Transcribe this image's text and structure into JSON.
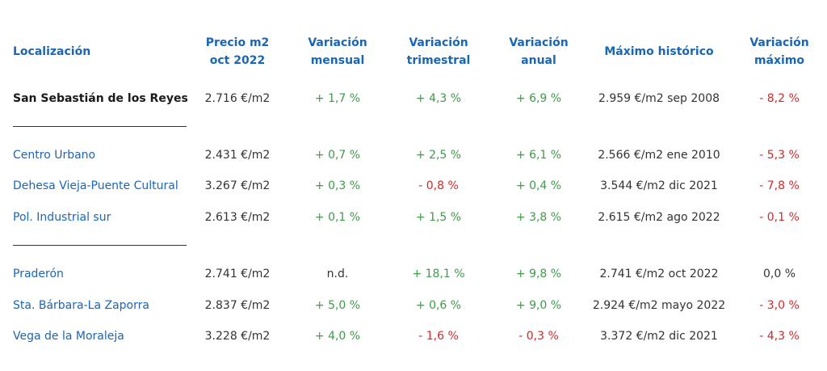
{
  "headers": {
    "location": "Localización",
    "price_l1": "Precio m2",
    "price_l2": "oct 2022",
    "monthly_l1": "Variación",
    "monthly_l2": "mensual",
    "quarterly_l1": "Variación",
    "quarterly_l2": "trimestral",
    "annual_l1": "Variación",
    "annual_l2": "anual",
    "max_hist": "Máximo histórico",
    "max_var_l1": "Variación",
    "max_var_l2": "máximo"
  },
  "colors": {
    "header_blue": "#1b66b4",
    "positive_green": "#3f9a4a",
    "negative_red": "#cc2a2a"
  },
  "rows": [
    {
      "name": "San Sebastián de los Reyes",
      "price": "2.716 €/m2",
      "monthly": "+ 1,7 %",
      "quarterly": "+ 4,3 %",
      "annual": "+ 6,9 %",
      "max_hist": "2.959 €/m2 sep 2008",
      "max_var": "- 8,2 %"
    },
    {
      "name": "Centro Urbano",
      "price": "2.431 €/m2",
      "monthly": "+ 0,7 %",
      "quarterly": "+ 2,5 %",
      "annual": "+ 6,1 %",
      "max_hist": "2.566 €/m2 ene 2010",
      "max_var": "- 5,3 %"
    },
    {
      "name": "Dehesa Vieja-Puente Cultural",
      "price": "3.267 €/m2",
      "monthly": "+ 0,3 %",
      "quarterly": "- 0,8 %",
      "annual": "+ 0,4 %",
      "max_hist": "3.544 €/m2 dic 2021",
      "max_var": "- 7,8 %"
    },
    {
      "name": "Pol. Industrial sur",
      "price": "2.613 €/m2",
      "monthly": "+ 0,1 %",
      "quarterly": "+ 1,5 %",
      "annual": "+ 3,8 %",
      "max_hist": "2.615 €/m2 ago 2022",
      "max_var": "- 0,1 %"
    },
    {
      "name": "Praderón",
      "price": "2.741 €/m2",
      "monthly": "n.d.",
      "quarterly": "+ 18,1 %",
      "annual": "+ 9,8 %",
      "max_hist": "2.741 €/m2 oct 2022",
      "max_var": "0,0 %"
    },
    {
      "name": "Sta. Bárbara-La Zaporra",
      "price": "2.837 €/m2",
      "monthly": "+ 5,0 %",
      "quarterly": "+ 0,6 %",
      "annual": "+ 9,0 %",
      "max_hist": "2.924 €/m2 mayo 2022",
      "max_var": "- 3,0 %"
    },
    {
      "name": "Vega de la Moraleja",
      "price": "3.228 €/m2",
      "monthly": "+ 4,0 %",
      "quarterly": "- 1,6 %",
      "annual": "- 0,3 %",
      "max_hist": "3.372 €/m2 dic 2021",
      "max_var": "- 4,3 %"
    }
  ]
}
